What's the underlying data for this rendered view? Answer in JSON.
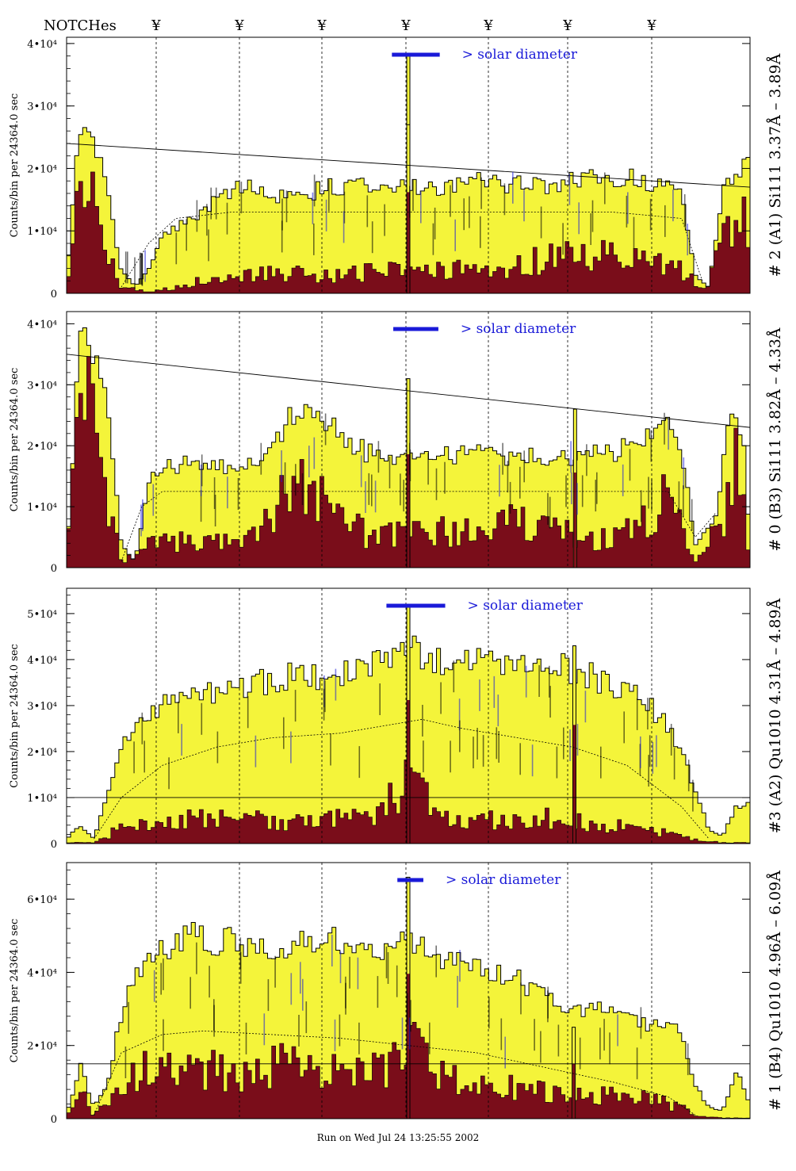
{
  "header": {
    "notches_label": "NOTCHes",
    "notch_symbol": "¥",
    "notch_positions": [
      197,
      302,
      406,
      512,
      616,
      716,
      822
    ]
  },
  "footer": {
    "run_text": "Run on Wed Jul 24 13:25:55 2002"
  },
  "colors": {
    "fill_light": "#f4f43a",
    "fill_dark": "#7a0d1a",
    "label_blue": "#1a1ad8",
    "axis": "#000000"
  },
  "y_label": "Counts/bin per  24364.0 sec",
  "solar_text": "> solar diameter",
  "chart_data": [
    {
      "type": "bar",
      "title": "# 2 (A1) Si111  3.37Å – 3.89Å",
      "ylabel": "Counts/bin per  24364.0 sec",
      "ylim": [
        0,
        41000
      ],
      "yticks": [
        {
          "v": 0,
          "label": "0"
        },
        {
          "v": 10000,
          "label": "1•10⁴"
        },
        {
          "v": 20000,
          "label": "2•10⁴"
        },
        {
          "v": 30000,
          "label": "3•10⁴"
        },
        {
          "v": 40000,
          "label": "4•10⁴"
        }
      ],
      "envelope": [
        [
          0,
          2000
        ],
        [
          2,
          28000
        ],
        [
          4,
          25000
        ],
        [
          6,
          16000
        ],
        [
          8,
          4000
        ],
        [
          10,
          1000
        ],
        [
          12,
          4000
        ],
        [
          14,
          9000
        ],
        [
          16,
          11000
        ],
        [
          18,
          12000
        ],
        [
          20,
          13000
        ],
        [
          22,
          16000
        ],
        [
          26,
          17000
        ],
        [
          30,
          16000
        ],
        [
          36,
          16500
        ],
        [
          40,
          17500
        ],
        [
          46,
          18000
        ],
        [
          50,
          17000
        ],
        [
          56,
          17500
        ],
        [
          60,
          18000
        ],
        [
          66,
          17500
        ],
        [
          70,
          17000
        ],
        [
          76,
          18500
        ],
        [
          80,
          19000
        ],
        [
          86,
          18000
        ],
        [
          90,
          16000
        ],
        [
          92,
          3000
        ],
        [
          94,
          1000
        ],
        [
          96,
          16000
        ],
        [
          98,
          20000
        ],
        [
          100,
          21000
        ]
      ],
      "dark": [
        [
          0,
          1000
        ],
        [
          2,
          18000
        ],
        [
          4,
          16000
        ],
        [
          6,
          6000
        ],
        [
          8,
          1000
        ],
        [
          12,
          200
        ],
        [
          16,
          1000
        ],
        [
          20,
          2000
        ],
        [
          26,
          3000
        ],
        [
          30,
          3500
        ],
        [
          36,
          3000
        ],
        [
          40,
          3000
        ],
        [
          46,
          3500
        ],
        [
          50,
          3500
        ],
        [
          56,
          3500
        ],
        [
          60,
          4000
        ],
        [
          66,
          4500
        ],
        [
          70,
          5500
        ],
        [
          76,
          6000
        ],
        [
          80,
          6000
        ],
        [
          86,
          5500
        ],
        [
          90,
          4000
        ],
        [
          93,
          500
        ],
        [
          96,
          8000
        ],
        [
          98,
          12000
        ],
        [
          100,
          10000
        ]
      ],
      "dashed": [
        [
          8,
          1000
        ],
        [
          12,
          8000
        ],
        [
          16,
          12000
        ],
        [
          24,
          13000
        ],
        [
          80,
          13000
        ],
        [
          90,
          12000
        ],
        [
          93,
          2000
        ]
      ],
      "line": [
        [
          0,
          24000
        ],
        [
          100,
          17000
        ]
      ],
      "peaks": [
        {
          "x": 50,
          "y": 38000
        },
        {
          "x": 50,
          "y": 27000
        }
      ],
      "solar_bar": [
        47.6,
        54.6
      ]
    },
    {
      "type": "bar",
      "title": "# 0 (B3) Si111  3.82Å – 4.33Å",
      "ylabel": "Counts/bin per  24364.0 sec",
      "ylim": [
        0,
        42000
      ],
      "yticks": [
        {
          "v": 0,
          "label": "0"
        },
        {
          "v": 10000,
          "label": "1•10⁴"
        },
        {
          "v": 20000,
          "label": "2•10⁴"
        },
        {
          "v": 30000,
          "label": "3•10⁴"
        },
        {
          "v": 40000,
          "label": "4•10⁴"
        }
      ],
      "envelope": [
        [
          0,
          2000
        ],
        [
          2,
          38000
        ],
        [
          4,
          35000
        ],
        [
          6,
          26000
        ],
        [
          8,
          4000
        ],
        [
          10,
          1000
        ],
        [
          12,
          14000
        ],
        [
          14,
          17000
        ],
        [
          20,
          17000
        ],
        [
          26,
          16500
        ],
        [
          30,
          19000
        ],
        [
          32,
          24000
        ],
        [
          34,
          26000
        ],
        [
          36,
          24000
        ],
        [
          38,
          25000
        ],
        [
          40,
          22000
        ],
        [
          44,
          19000
        ],
        [
          48,
          18000
        ],
        [
          50,
          19000
        ],
        [
          54,
          18500
        ],
        [
          60,
          19000
        ],
        [
          66,
          18500
        ],
        [
          70,
          18000
        ],
        [
          74,
          18500
        ],
        [
          80,
          19000
        ],
        [
          86,
          22000
        ],
        [
          88,
          25000
        ],
        [
          90,
          20000
        ],
        [
          92,
          4000
        ],
        [
          95,
          8000
        ],
        [
          97,
          24000
        ],
        [
          99,
          22000
        ],
        [
          100,
          3000
        ]
      ],
      "dark": [
        [
          0,
          1000
        ],
        [
          2,
          32000
        ],
        [
          4,
          28000
        ],
        [
          6,
          12000
        ],
        [
          8,
          1000
        ],
        [
          12,
          4000
        ],
        [
          20,
          4500
        ],
        [
          26,
          5000
        ],
        [
          30,
          8000
        ],
        [
          32,
          12000
        ],
        [
          34,
          15000
        ],
        [
          36,
          12000
        ],
        [
          38,
          11000
        ],
        [
          40,
          9000
        ],
        [
          44,
          5000
        ],
        [
          50,
          6000
        ],
        [
          56,
          6000
        ],
        [
          60,
          7000
        ],
        [
          66,
          7500
        ],
        [
          70,
          6000
        ],
        [
          76,
          5000
        ],
        [
          80,
          5000
        ],
        [
          86,
          8000
        ],
        [
          88,
          12000
        ],
        [
          90,
          8000
        ],
        [
          92,
          600
        ],
        [
          96,
          8000
        ],
        [
          98,
          22000
        ],
        [
          100,
          2000
        ]
      ],
      "dashed": [
        [
          8,
          1000
        ],
        [
          11,
          10000
        ],
        [
          14,
          12500
        ],
        [
          88,
          12500
        ],
        [
          92,
          5000
        ],
        [
          95,
          9000
        ]
      ],
      "line": [
        [
          0,
          35000
        ],
        [
          100,
          23000
        ]
      ],
      "peaks": [
        {
          "x": 50,
          "y": 31000
        },
        {
          "x": 74.4,
          "y": 26000
        }
      ],
      "solar_bar": [
        47.8,
        54.4
      ]
    },
    {
      "type": "bar",
      "title": "#3 (A2) Qu1010  4.31Å – 4.89Å",
      "ylabel": "Counts/bin per  24364.0 sec",
      "ylim": [
        0,
        55500
      ],
      "yticks": [
        {
          "v": 0,
          "label": "0"
        },
        {
          "v": 10000,
          "label": "1•10⁴"
        },
        {
          "v": 20000,
          "label": "2•10⁴"
        },
        {
          "v": 30000,
          "label": "3•10⁴"
        },
        {
          "v": 40000,
          "label": "4•10⁴"
        },
        {
          "v": 50000,
          "label": "5•10⁴"
        }
      ],
      "envelope": [
        [
          0,
          1000
        ],
        [
          2,
          4000
        ],
        [
          4,
          1000
        ],
        [
          6,
          12000
        ],
        [
          8,
          20000
        ],
        [
          10,
          26000
        ],
        [
          14,
          30000
        ],
        [
          18,
          33000
        ],
        [
          22,
          34000
        ],
        [
          28,
          35000
        ],
        [
          32,
          37000
        ],
        [
          36,
          36000
        ],
        [
          40,
          38000
        ],
        [
          44,
          39000
        ],
        [
          48,
          41000
        ],
        [
          50,
          45000
        ],
        [
          52,
          40000
        ],
        [
          56,
          39000
        ],
        [
          60,
          40000
        ],
        [
          64,
          39000
        ],
        [
          68,
          38000
        ],
        [
          72,
          38500
        ],
        [
          76,
          37000
        ],
        [
          80,
          35000
        ],
        [
          84,
          32000
        ],
        [
          88,
          26000
        ],
        [
          92,
          12000
        ],
        [
          94,
          3000
        ],
        [
          96,
          1500
        ],
        [
          98,
          8000
        ],
        [
          100,
          9000
        ]
      ],
      "dark": [
        [
          0,
          200
        ],
        [
          4,
          200
        ],
        [
          6,
          1500
        ],
        [
          8,
          4000
        ],
        [
          12,
          5000
        ],
        [
          20,
          5500
        ],
        [
          28,
          5000
        ],
        [
          36,
          5000
        ],
        [
          44,
          5500
        ],
        [
          48,
          10000
        ],
        [
          50,
          14000
        ],
        [
          52,
          10000
        ],
        [
          56,
          5000
        ],
        [
          64,
          5000
        ],
        [
          72,
          5500
        ],
        [
          80,
          4000
        ],
        [
          88,
          2500
        ],
        [
          92,
          800
        ],
        [
          96,
          200
        ]
      ],
      "dashed": [
        [
          4,
          1000
        ],
        [
          8,
          10000
        ],
        [
          14,
          17000
        ],
        [
          22,
          21000
        ],
        [
          30,
          23000
        ],
        [
          40,
          24000
        ],
        [
          48,
          26000
        ],
        [
          52,
          27000
        ],
        [
          58,
          25000
        ],
        [
          64,
          23500
        ],
        [
          74,
          21000
        ],
        [
          82,
          17000
        ],
        [
          90,
          8000
        ],
        [
          94,
          1000
        ]
      ],
      "line": [
        [
          0,
          10000
        ],
        [
          100,
          10000
        ]
      ],
      "peaks": [
        {
          "x": 50,
          "y": 52000
        },
        {
          "x": 74.3,
          "y": 43000
        }
      ],
      "solar_bar": [
        46.8,
        55.4
      ]
    },
    {
      "type": "bar",
      "title": "# 1 (B4) Qu1010 4.96Å – 6.09Å",
      "ylabel": "Counts/bin per  24364.0 sec",
      "ylim": [
        0,
        70000
      ],
      "yticks": [
        {
          "v": 0,
          "label": "0"
        },
        {
          "v": 20000,
          "label": "2•10⁴"
        },
        {
          "v": 40000,
          "label": "4•10⁴"
        },
        {
          "v": 60000,
          "label": "6•10⁴"
        }
      ],
      "envelope": [
        [
          0,
          1000
        ],
        [
          2,
          15000
        ],
        [
          4,
          3000
        ],
        [
          6,
          10000
        ],
        [
          8,
          28000
        ],
        [
          10,
          40000
        ],
        [
          14,
          48000
        ],
        [
          18,
          50000
        ],
        [
          22,
          48000
        ],
        [
          26,
          49000
        ],
        [
          30,
          47000
        ],
        [
          34,
          49000
        ],
        [
          38,
          51000
        ],
        [
          42,
          48000
        ],
        [
          46,
          47000
        ],
        [
          50,
          48000
        ],
        [
          54,
          46000
        ],
        [
          58,
          44000
        ],
        [
          62,
          40000
        ],
        [
          66,
          38000
        ],
        [
          70,
          35000
        ],
        [
          74,
          31000
        ],
        [
          78,
          30000
        ],
        [
          82,
          28000
        ],
        [
          86,
          26000
        ],
        [
          90,
          24000
        ],
        [
          92,
          9000
        ],
        [
          94,
          3000
        ],
        [
          96,
          2000
        ],
        [
          98,
          14000
        ],
        [
          100,
          4000
        ]
      ],
      "dark": [
        [
          0,
          200
        ],
        [
          2,
          8000
        ],
        [
          4,
          800
        ],
        [
          6,
          5000
        ],
        [
          8,
          10000
        ],
        [
          12,
          14000
        ],
        [
          16,
          16000
        ],
        [
          20,
          14000
        ],
        [
          26,
          13000
        ],
        [
          32,
          15000
        ],
        [
          38,
          13000
        ],
        [
          44,
          14000
        ],
        [
          48,
          16000
        ],
        [
          50,
          20000
        ],
        [
          54,
          13000
        ],
        [
          58,
          10000
        ],
        [
          62,
          9000
        ],
        [
          66,
          8000
        ],
        [
          70,
          7500
        ],
        [
          74,
          7000
        ],
        [
          80,
          6500
        ],
        [
          86,
          5000
        ],
        [
          90,
          3000
        ],
        [
          92,
          700
        ],
        [
          96,
          200
        ]
      ],
      "dashed": [
        [
          4,
          1000
        ],
        [
          8,
          18000
        ],
        [
          14,
          23000
        ],
        [
          20,
          24000
        ],
        [
          30,
          23000
        ],
        [
          40,
          22000
        ],
        [
          50,
          20000
        ],
        [
          60,
          18000
        ],
        [
          70,
          14000
        ],
        [
          80,
          10000
        ],
        [
          88,
          6000
        ],
        [
          92,
          1000
        ]
      ],
      "line": [
        [
          0,
          15000
        ],
        [
          100,
          15000
        ]
      ],
      "peaks": [
        {
          "x": 50,
          "y": 66000
        },
        {
          "x": 74.2,
          "y": 25000
        }
      ],
      "solar_bar": [
        48.4,
        52.2
      ]
    }
  ]
}
